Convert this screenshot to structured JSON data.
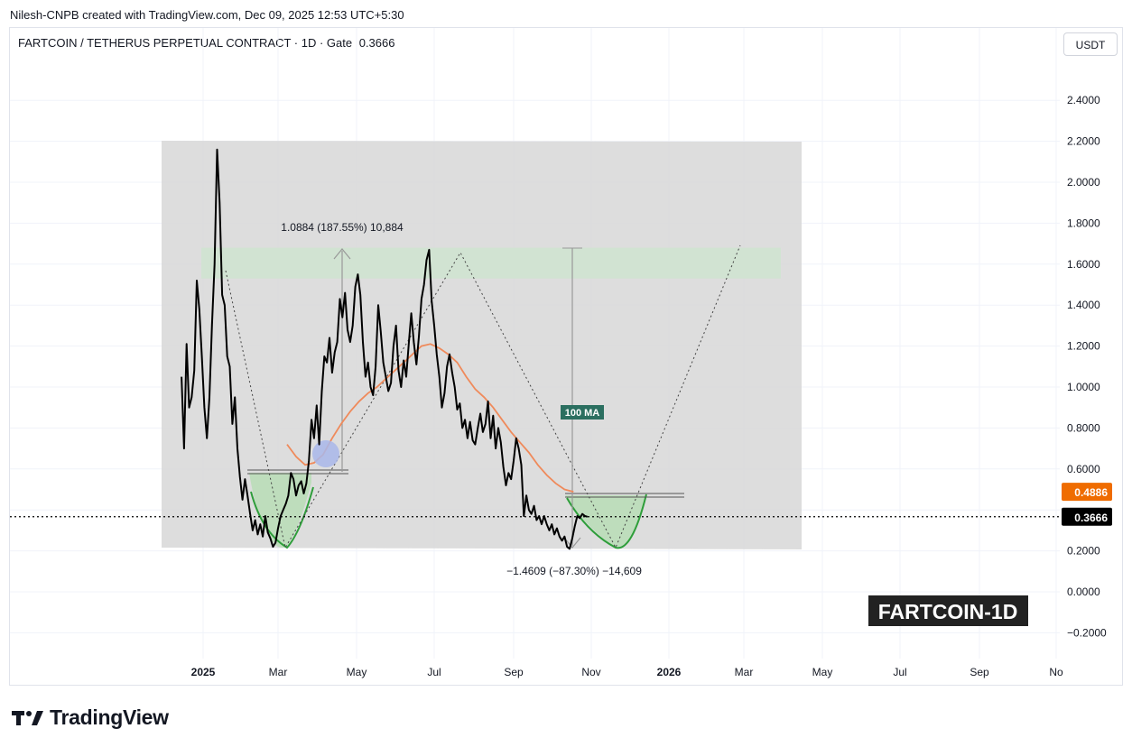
{
  "header": {
    "credit": "Nilesh-CNPB created with TradingView.com, Dec 09, 2025 12:53 UTC+5:30"
  },
  "symbol": {
    "title": "FARTCOIN / TETHERUS PERPETUAL CONTRACT · 1D · Gate",
    "price": "0.3666"
  },
  "currency_button": "USDT",
  "brand": {
    "name": "TradingView"
  },
  "colors": {
    "price_line": "#000000",
    "ma_line": "#ef8a5b",
    "ma_badge": "#ef6c00",
    "range_box": "#d7d7d7",
    "target_zone": "#cfe3d0",
    "cup_fill": "#b9ddb6",
    "cup_stroke": "#2e9e3a",
    "ma_label_bg": "#2b6f60",
    "blue_dot": "#a9b7ea"
  },
  "chart_data": {
    "type": "line",
    "title": "FARTCOIN / TETHERUS PERPETUAL CONTRACT · 1D · Gate",
    "watermark": "FARTCOIN-1D",
    "current_price": "0.3666",
    "y_axis": {
      "ticks": [
        "2.4000",
        "2.2000",
        "2.0000",
        "1.8000",
        "1.6000",
        "1.4000",
        "1.2000",
        "1.0000",
        "0.8000",
        "0.6000",
        "0.2000",
        "0.0000",
        "−0.2000"
      ],
      "ylim": [
        -0.3,
        2.6
      ]
    },
    "x_axis": {
      "ticks": [
        "2025",
        "Mar",
        "May",
        "Jul",
        "Sep",
        "Nov",
        "2026",
        "Mar",
        "May",
        "Jul",
        "Sep",
        "No"
      ],
      "bold": [
        "2025",
        "2026"
      ]
    },
    "price_badges": [
      {
        "label": "0.4886",
        "value": 0.4886,
        "kind": "ma"
      },
      {
        "label": "0.3666",
        "value": 0.3666,
        "kind": "last"
      }
    ],
    "series": [
      {
        "name": "Price",
        "points": [
          [
            "2024-12-15",
            1.05
          ],
          [
            "2024-12-17",
            0.7
          ],
          [
            "2024-12-19",
            1.21
          ],
          [
            "2024-12-21",
            0.9
          ],
          [
            "2024-12-23",
            0.95
          ],
          [
            "2024-12-25",
            1.08
          ],
          [
            "2024-12-27",
            1.52
          ],
          [
            "2024-12-29",
            1.38
          ],
          [
            "2024-12-31",
            1.15
          ],
          [
            "2025-01-02",
            0.9
          ],
          [
            "2025-01-04",
            0.75
          ],
          [
            "2025-01-06",
            0.95
          ],
          [
            "2025-01-08",
            1.3
          ],
          [
            "2025-01-10",
            1.6
          ],
          [
            "2025-01-12",
            2.16
          ],
          [
            "2025-01-14",
            1.9
          ],
          [
            "2025-01-16",
            1.45
          ],
          [
            "2025-01-18",
            1.4
          ],
          [
            "2025-01-20",
            1.15
          ],
          [
            "2025-01-22",
            1.1
          ],
          [
            "2025-01-24",
            0.82
          ],
          [
            "2025-01-26",
            0.95
          ],
          [
            "2025-01-28",
            0.7
          ],
          [
            "2025-01-30",
            0.56
          ],
          [
            "2025-02-01",
            0.45
          ],
          [
            "2025-02-03",
            0.55
          ],
          [
            "2025-02-05",
            0.47
          ],
          [
            "2025-02-07",
            0.38
          ],
          [
            "2025-02-09",
            0.3
          ],
          [
            "2025-02-11",
            0.35
          ],
          [
            "2025-02-13",
            0.28
          ],
          [
            "2025-02-15",
            0.33
          ],
          [
            "2025-02-17",
            0.27
          ],
          [
            "2025-02-19",
            0.37
          ],
          [
            "2025-02-21",
            0.29
          ],
          [
            "2025-02-23",
            0.26
          ],
          [
            "2025-02-25",
            0.22
          ],
          [
            "2025-02-27",
            0.24
          ],
          [
            "2025-03-01",
            0.31
          ],
          [
            "2025-03-03",
            0.37
          ],
          [
            "2025-03-05",
            0.4
          ],
          [
            "2025-03-07",
            0.43
          ],
          [
            "2025-03-09",
            0.47
          ],
          [
            "2025-03-11",
            0.58
          ],
          [
            "2025-03-13",
            0.55
          ],
          [
            "2025-03-15",
            0.47
          ],
          [
            "2025-03-17",
            0.52
          ],
          [
            "2025-03-19",
            0.54
          ],
          [
            "2025-03-21",
            0.48
          ],
          [
            "2025-03-23",
            0.53
          ],
          [
            "2025-03-25",
            0.64
          ],
          [
            "2025-03-27",
            0.84
          ],
          [
            "2025-03-29",
            0.75
          ],
          [
            "2025-03-31",
            0.91
          ],
          [
            "2025-04-02",
            0.72
          ],
          [
            "2025-04-04",
            0.98
          ],
          [
            "2025-04-06",
            1.15
          ],
          [
            "2025-04-08",
            1.12
          ],
          [
            "2025-04-10",
            1.24
          ],
          [
            "2025-04-12",
            1.07
          ],
          [
            "2025-04-14",
            1.17
          ],
          [
            "2025-04-16",
            1.22
          ],
          [
            "2025-04-18",
            1.43
          ],
          [
            "2025-04-20",
            1.34
          ],
          [
            "2025-04-22",
            1.46
          ],
          [
            "2025-04-24",
            1.28
          ],
          [
            "2025-04-26",
            1.22
          ],
          [
            "2025-04-28",
            1.3
          ],
          [
            "2025-04-30",
            1.49
          ],
          [
            "2025-05-02",
            1.55
          ],
          [
            "2025-05-04",
            1.45
          ],
          [
            "2025-05-06",
            1.22
          ],
          [
            "2025-05-08",
            1.05
          ],
          [
            "2025-05-10",
            1.12
          ],
          [
            "2025-05-12",
            1.0
          ],
          [
            "2025-05-14",
            0.96
          ],
          [
            "2025-05-16",
            1.1
          ],
          [
            "2025-05-18",
            1.4
          ],
          [
            "2025-05-20",
            1.27
          ],
          [
            "2025-05-22",
            1.12
          ],
          [
            "2025-05-24",
            1.05
          ],
          [
            "2025-05-26",
            0.98
          ],
          [
            "2025-05-28",
            1.02
          ],
          [
            "2025-05-30",
            1.2
          ],
          [
            "2025-06-01",
            1.3
          ],
          [
            "2025-06-03",
            1.08
          ],
          [
            "2025-06-05",
            1.0
          ],
          [
            "2025-06-07",
            1.13
          ],
          [
            "2025-06-09",
            1.05
          ],
          [
            "2025-06-11",
            1.21
          ],
          [
            "2025-06-13",
            1.36
          ],
          [
            "2025-06-15",
            1.22
          ],
          [
            "2025-06-17",
            1.11
          ],
          [
            "2025-06-19",
            1.25
          ],
          [
            "2025-06-21",
            1.43
          ],
          [
            "2025-06-23",
            1.5
          ],
          [
            "2025-06-25",
            1.62
          ],
          [
            "2025-06-27",
            1.67
          ],
          [
            "2025-06-29",
            1.42
          ],
          [
            "2025-07-01",
            1.3
          ],
          [
            "2025-07-03",
            1.16
          ],
          [
            "2025-07-05",
            1.05
          ],
          [
            "2025-07-07",
            0.9
          ],
          [
            "2025-07-09",
            0.97
          ],
          [
            "2025-07-11",
            1.1
          ],
          [
            "2025-07-13",
            1.16
          ],
          [
            "2025-07-15",
            1.07
          ],
          [
            "2025-07-17",
            1.0
          ],
          [
            "2025-07-19",
            0.89
          ],
          [
            "2025-07-21",
            0.92
          ],
          [
            "2025-07-23",
            0.8
          ],
          [
            "2025-07-25",
            0.84
          ],
          [
            "2025-07-27",
            0.75
          ],
          [
            "2025-07-29",
            0.83
          ],
          [
            "2025-07-31",
            0.74
          ],
          [
            "2025-08-02",
            0.72
          ],
          [
            "2025-08-04",
            0.8
          ],
          [
            "2025-08-06",
            0.87
          ],
          [
            "2025-08-08",
            0.78
          ],
          [
            "2025-08-10",
            0.82
          ],
          [
            "2025-08-12",
            0.93
          ],
          [
            "2025-08-14",
            0.75
          ],
          [
            "2025-08-16",
            0.86
          ],
          [
            "2025-08-18",
            0.7
          ],
          [
            "2025-08-20",
            0.8
          ],
          [
            "2025-08-22",
            0.73
          ],
          [
            "2025-08-24",
            0.61
          ],
          [
            "2025-08-26",
            0.52
          ],
          [
            "2025-08-28",
            0.58
          ],
          [
            "2025-08-30",
            0.55
          ],
          [
            "2025-09-01",
            0.64
          ],
          [
            "2025-09-03",
            0.75
          ],
          [
            "2025-09-05",
            0.7
          ],
          [
            "2025-09-07",
            0.62
          ],
          [
            "2025-09-09",
            0.37
          ],
          [
            "2025-09-11",
            0.47
          ],
          [
            "2025-09-13",
            0.4
          ],
          [
            "2025-09-15",
            0.38
          ],
          [
            "2025-09-17",
            0.42
          ],
          [
            "2025-09-19",
            0.35
          ],
          [
            "2025-09-21",
            0.37
          ],
          [
            "2025-09-23",
            0.33
          ],
          [
            "2025-09-25",
            0.37
          ],
          [
            "2025-09-27",
            0.33
          ],
          [
            "2025-09-29",
            0.3
          ],
          [
            "2025-10-01",
            0.33
          ],
          [
            "2025-10-03",
            0.28
          ],
          [
            "2025-10-05",
            0.31
          ],
          [
            "2025-10-07",
            0.27
          ],
          [
            "2025-10-09",
            0.25
          ],
          [
            "2025-10-11",
            0.27
          ],
          [
            "2025-10-13",
            0.22
          ],
          [
            "2025-10-15",
            0.21
          ],
          [
            "2025-10-17",
            0.26
          ],
          [
            "2025-10-19",
            0.32
          ],
          [
            "2025-10-21",
            0.37
          ],
          [
            "2025-10-23",
            0.36
          ],
          [
            "2025-10-25",
            0.38
          ],
          [
            "2025-10-27",
            0.37
          ],
          [
            "2025-10-29",
            0.3666
          ]
        ]
      },
      {
        "name": "100 MA",
        "points": [
          [
            "2025-03-08",
            0.72
          ],
          [
            "2025-03-15",
            0.66
          ],
          [
            "2025-03-22",
            0.62
          ],
          [
            "2025-03-29",
            0.63
          ],
          [
            "2025-04-05",
            0.67
          ],
          [
            "2025-04-12",
            0.75
          ],
          [
            "2025-04-19",
            0.82
          ],
          [
            "2025-04-26",
            0.88
          ],
          [
            "2025-05-03",
            0.93
          ],
          [
            "2025-05-10",
            0.97
          ],
          [
            "2025-05-17",
            1.0
          ],
          [
            "2025-05-24",
            1.04
          ],
          [
            "2025-05-31",
            1.08
          ],
          [
            "2025-06-07",
            1.12
          ],
          [
            "2025-06-14",
            1.16
          ],
          [
            "2025-06-21",
            1.2
          ],
          [
            "2025-06-28",
            1.21
          ],
          [
            "2025-07-05",
            1.19
          ],
          [
            "2025-07-12",
            1.16
          ],
          [
            "2025-07-19",
            1.12
          ],
          [
            "2025-07-26",
            1.05
          ],
          [
            "2025-08-02",
            0.99
          ],
          [
            "2025-08-09",
            0.95
          ],
          [
            "2025-08-16",
            0.9
          ],
          [
            "2025-08-23",
            0.84
          ],
          [
            "2025-08-30",
            0.78
          ],
          [
            "2025-09-06",
            0.73
          ],
          [
            "2025-09-13",
            0.68
          ],
          [
            "2025-09-20",
            0.62
          ],
          [
            "2025-09-27",
            0.57
          ],
          [
            "2025-10-04",
            0.53
          ],
          [
            "2025-10-11",
            0.5
          ],
          [
            "2025-10-18",
            0.4886
          ]
        ]
      }
    ],
    "annotations": [
      {
        "text": "1.0884 (187.55%) 10,884",
        "kind": "measure-up"
      },
      {
        "text": "−1.4609 (−87.30%) −14,609",
        "kind": "measure-down"
      },
      {
        "text": "100 MA",
        "kind": "label"
      }
    ]
  }
}
